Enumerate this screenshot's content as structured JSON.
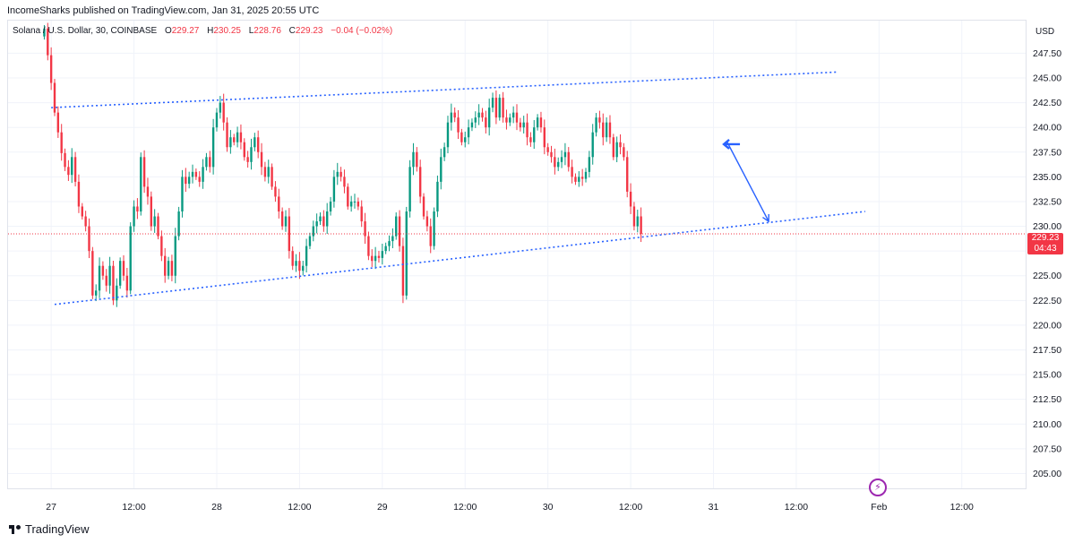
{
  "header": {
    "publisher": "IncomeSharks published on TradingView.com, Jan 31, 2025 20:55 UTC"
  },
  "legend": {
    "symbol": "Solana / U.S. Dollar, 30, COINBASE",
    "open_label": "O",
    "open": "229.27",
    "high_label": "H",
    "high": "230.25",
    "low_label": "L",
    "low": "228.76",
    "close_label": "C",
    "close": "229.23",
    "change": "−0.04 (−0.02%)"
  },
  "price_axis": {
    "currency": "USD",
    "current_price": "229.23",
    "countdown": "04:43"
  },
  "footer": {
    "brand": "TradingView"
  },
  "colors": {
    "up": "#089981",
    "down": "#f23645",
    "trendline": "#2962ff",
    "arrow": "#2962ff",
    "grid": "#f0f3fa"
  },
  "chart_data": {
    "type": "candlestick",
    "title": "Solana / U.S. Dollar, 30, COINBASE",
    "ylim": [
      203.5,
      250.8
    ],
    "y_ticks": [
      "247.50",
      "245.00",
      "242.50",
      "240.00",
      "237.50",
      "235.00",
      "232.50",
      "230.00",
      "227.50",
      "225.00",
      "222.50",
      "220.00",
      "217.50",
      "215.00",
      "212.50",
      "210.00",
      "207.50",
      "205.00"
    ],
    "x_ticks": [
      {
        "label": "27",
        "t": 0
      },
      {
        "label": "12:00",
        "t": 24
      },
      {
        "label": "28",
        "t": 48
      },
      {
        "label": "12:00",
        "t": 72
      },
      {
        "label": "29",
        "t": 96
      },
      {
        "label": "12:00",
        "t": 120
      },
      {
        "label": "30",
        "t": 144
      },
      {
        "label": "12:00",
        "t": 168
      },
      {
        "label": "31",
        "t": 192
      },
      {
        "label": "12:00",
        "t": 216
      },
      {
        "label": "Feb",
        "t": 240
      },
      {
        "label": "12:00",
        "t": 264
      }
    ],
    "t_range": [
      -12.5,
      282.5
    ],
    "closes": [
      250.0,
      247.3,
      244.5,
      241.5,
      239.5,
      237.4,
      236.0,
      235.2,
      237.0,
      234.5,
      232.0,
      231.0,
      230.0,
      227.5,
      223.0,
      223.5,
      226.0,
      225.0,
      224.0,
      226.0,
      222.5,
      224.0,
      226.5,
      225.0,
      223.5,
      230.0,
      232.0,
      231.5,
      237.0,
      234.0,
      233.0,
      230.0,
      231.0,
      229.0,
      227.0,
      225.0,
      226.5,
      225.0,
      229.0,
      231.5,
      235.0,
      234.3,
      235.0,
      235.5,
      235.0,
      234.5,
      236.0,
      237.0,
      236.0,
      240.0,
      241.5,
      242.5,
      240.5,
      238.0,
      239.0,
      238.5,
      239.5,
      238.5,
      237.0,
      236.5,
      238.0,
      239.0,
      237.5,
      236.0,
      235.0,
      236.0,
      234.0,
      233.0,
      231.5,
      230.0,
      231.0,
      227.5,
      226.0,
      226.5,
      225.5,
      226.0,
      228.0,
      229.0,
      230.0,
      230.5,
      231.0,
      230.0,
      231.5,
      232.5,
      235.0,
      235.5,
      235.0,
      234.0,
      232.0,
      232.5,
      232.5,
      232.0,
      230.5,
      229.0,
      227.0,
      226.5,
      227.0,
      226.8,
      227.5,
      228.0,
      228.5,
      229.0,
      231.0,
      228.0,
      223.0,
      231.5,
      236.0,
      237.5,
      236.0,
      233.0,
      231.0,
      230.0,
      228.0,
      231.5,
      234.5,
      237.0,
      238.0,
      240.5,
      241.5,
      241.0,
      239.5,
      238.5,
      239.0,
      240.0,
      240.5,
      241.0,
      241.5,
      241.0,
      240.0,
      242.0,
      243.0,
      241.0,
      243.0,
      241.0,
      240.5,
      241.0,
      241.5,
      240.5,
      240.0,
      240.5,
      239.0,
      238.5,
      240.0,
      241.0,
      240.0,
      238.0,
      237.5,
      237.0,
      236.0,
      236.5,
      237.0,
      237.5,
      236.0,
      235.0,
      234.5,
      235.0,
      234.8,
      235.5,
      237.0,
      239.5,
      241.0,
      240.5,
      239.0,
      240.5,
      239.0,
      237.0,
      238.5,
      238.0,
      237.0,
      233.5,
      232.0,
      230.0,
      231.0,
      229.23
    ],
    "annotations": {
      "trendline_upper": {
        "from": {
          "t": 0,
          "y": 242.0
        },
        "to": {
          "t": 228,
          "y": 245.6
        }
      },
      "trendline_lower": {
        "from": {
          "t": 1,
          "y": 222.1
        },
        "to": {
          "t": 236,
          "y": 231.5
        }
      },
      "arrow_start": {
        "t": 196,
        "y": 238.5
      },
      "arrow_end": {
        "t": 208,
        "y": 230.5
      },
      "marker": {
        "t": 195,
        "y": 238.3
      }
    }
  }
}
